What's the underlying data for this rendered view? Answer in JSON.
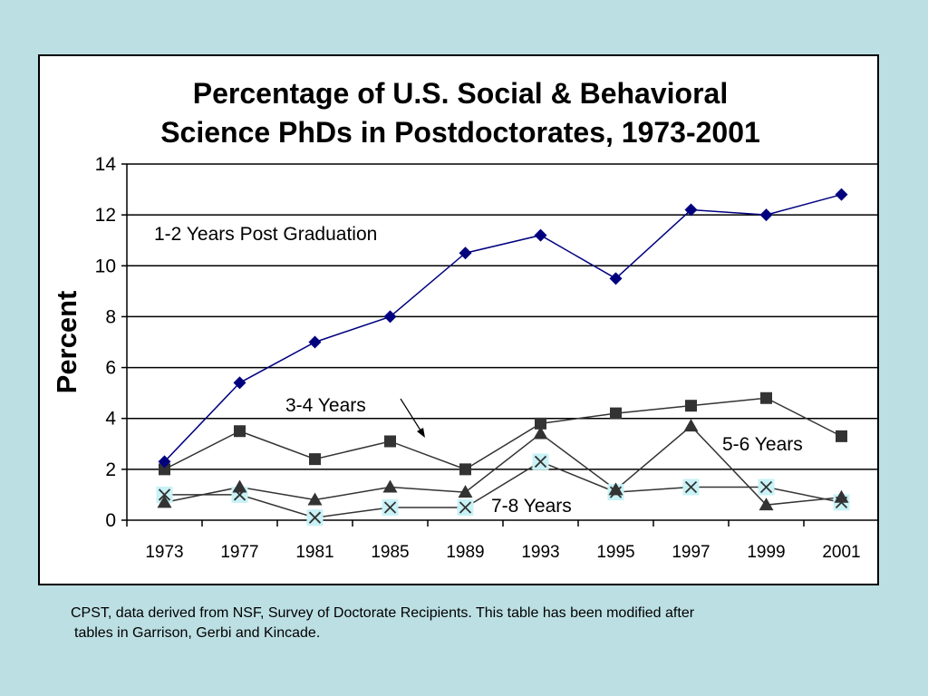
{
  "caption": {
    "line1": "CPST, data derived from NSF, Survey of Doctorate Recipients.  This table has been modified after",
    "line2": "tables in Garrison, Gerbi and Kincade."
  },
  "chart_data": {
    "type": "line",
    "title_lines": [
      "Percentage of U.S. Social & Behavioral",
      "Science PhDs in Postdoctorates, 1973-2001"
    ],
    "xlabel": "",
    "ylabel": "Percent",
    "categories": [
      "1973",
      "1977",
      "1981",
      "1985",
      "1989",
      "1993",
      "1995",
      "1997",
      "1999",
      "2001"
    ],
    "ylim": [
      0,
      14
    ],
    "yticks": [
      0,
      2,
      4,
      6,
      8,
      10,
      12,
      14
    ],
    "grid": true,
    "series": [
      {
        "name": "1-2 Years Post Graduation",
        "marker": "diamond",
        "color": "#00007f",
        "values": [
          2.3,
          5.4,
          7.0,
          8.0,
          10.5,
          11.2,
          9.5,
          12.2,
          12.0,
          12.8
        ]
      },
      {
        "name": "3-4 Years",
        "marker": "square",
        "color": "#333333",
        "values": [
          2.0,
          3.5,
          2.4,
          3.1,
          2.0,
          3.8,
          4.2,
          4.5,
          4.8,
          3.3
        ]
      },
      {
        "name": "5-6 Years",
        "marker": "triangle",
        "color": "#333333",
        "values": [
          0.7,
          1.3,
          0.8,
          1.3,
          1.1,
          3.4,
          1.2,
          3.7,
          0.6,
          0.9
        ]
      },
      {
        "name": "7-8 Years",
        "marker": "x",
        "color": "#333333",
        "values": [
          1.0,
          1.0,
          0.1,
          0.5,
          0.5,
          2.3,
          1.1,
          1.3,
          1.3,
          0.7
        ]
      }
    ],
    "annotations": [
      {
        "text": "1-2 Years Post Graduation",
        "series": 0
      },
      {
        "text": "3-4 Years",
        "series": 1,
        "arrow": true
      },
      {
        "text": "5-6 Years",
        "series": 2
      },
      {
        "text": "7-8 Years",
        "series": 3
      }
    ]
  }
}
